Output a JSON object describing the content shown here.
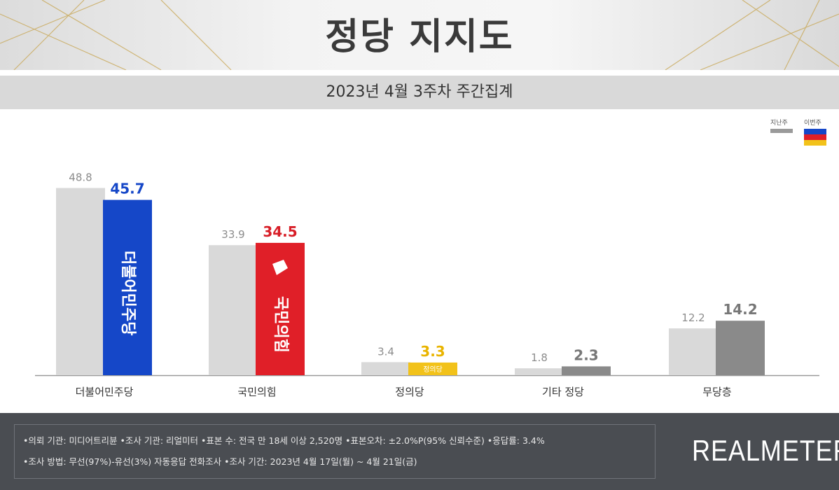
{
  "header": {
    "title": "정당 지지도",
    "subtitle": "2023년 4월 3주차 주간집계"
  },
  "legend": {
    "previous_label": "지난주",
    "current_label": "이번주",
    "previous_color": "#9a9a9a"
  },
  "colors": {
    "prev_bar": "#d9d9d9",
    "prev_value_text": "#8c8c8c",
    "baseline": "#9a9a9a",
    "category_text": "#333333"
  },
  "chart_data": {
    "type": "bar",
    "title": "정당 지지도",
    "subtitle": "2023년 4월 3주차 주간집계",
    "categories": [
      "더불어민주당",
      "국민의힘",
      "정의당",
      "기타 정당",
      "무당층"
    ],
    "series": [
      {
        "name": "지난주",
        "values": [
          48.8,
          33.9,
          3.4,
          1.8,
          12.2
        ]
      },
      {
        "name": "이번주",
        "values": [
          45.7,
          34.5,
          3.3,
          2.3,
          14.2
        ]
      }
    ],
    "current_colors": [
      "#1547c8",
      "#e01f28",
      "#f2c21a",
      "#8a8a8a",
      "#8a8a8a"
    ],
    "current_value_colors": [
      "#1547c8",
      "#d81e27",
      "#e9b400",
      "#777777",
      "#777777"
    ],
    "bar_logo_texts": [
      "더불어민주당",
      "국민의힘",
      "정의당",
      "",
      ""
    ],
    "ylim": [
      0,
      55
    ]
  },
  "footer": {
    "line1": "•의뢰 기관: 미디어트리뷴  •조사 기관: 리얼미터 •표본 수: 전국 만 18세 이상 2,520명 •표본오차: ±2.0%P(95% 신뢰수준) •응답률: 3.4%",
    "line2": "•조사 방법: 무선(97%)-유선(3%) 자동응답 전화조사 •조사 기간: 2023년 4월 17일(월) ~ 4월 21일(금)",
    "brand": "REALMETER"
  }
}
